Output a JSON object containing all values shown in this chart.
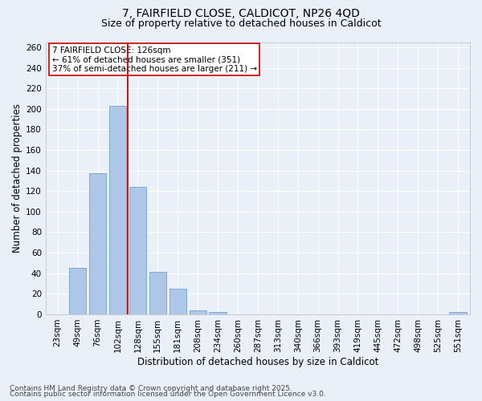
{
  "title_line1": "7, FAIRFIELD CLOSE, CALDICOT, NP26 4QD",
  "title_line2": "Size of property relative to detached houses in Caldicot",
  "xlabel": "Distribution of detached houses by size in Caldicot",
  "ylabel": "Number of detached properties",
  "categories": [
    "23sqm",
    "49sqm",
    "76sqm",
    "102sqm",
    "128sqm",
    "155sqm",
    "181sqm",
    "208sqm",
    "234sqm",
    "260sqm",
    "287sqm",
    "313sqm",
    "340sqm",
    "366sqm",
    "393sqm",
    "419sqm",
    "445sqm",
    "472sqm",
    "498sqm",
    "525sqm",
    "551sqm"
  ],
  "values": [
    0,
    45,
    137,
    203,
    124,
    41,
    25,
    4,
    2,
    0,
    0,
    0,
    0,
    0,
    0,
    0,
    0,
    0,
    0,
    0,
    2
  ],
  "bar_color": "#aec6e8",
  "bar_edge_color": "#7aadd4",
  "vline_color": "#cc0000",
  "annotation_text": "7 FAIRFIELD CLOSE: 126sqm\n← 61% of detached houses are smaller (351)\n37% of semi-detached houses are larger (211) →",
  "annotation_box_color": "#ffffff",
  "annotation_box_edge_color": "#cc0000",
  "ylim": [
    0,
    265
  ],
  "yticks": [
    0,
    20,
    40,
    60,
    80,
    100,
    120,
    140,
    160,
    180,
    200,
    220,
    240,
    260
  ],
  "background_color": "#eaf0f8",
  "grid_color": "#ffffff",
  "footer_line1": "Contains HM Land Registry data © Crown copyright and database right 2025.",
  "footer_line2": "Contains public sector information licensed under the Open Government Licence v3.0.",
  "title_fontsize": 10,
  "subtitle_fontsize": 9,
  "axis_label_fontsize": 8.5,
  "tick_fontsize": 7.5,
  "annotation_fontsize": 7.5,
  "footer_fontsize": 6.5,
  "vline_bar_index": 4
}
